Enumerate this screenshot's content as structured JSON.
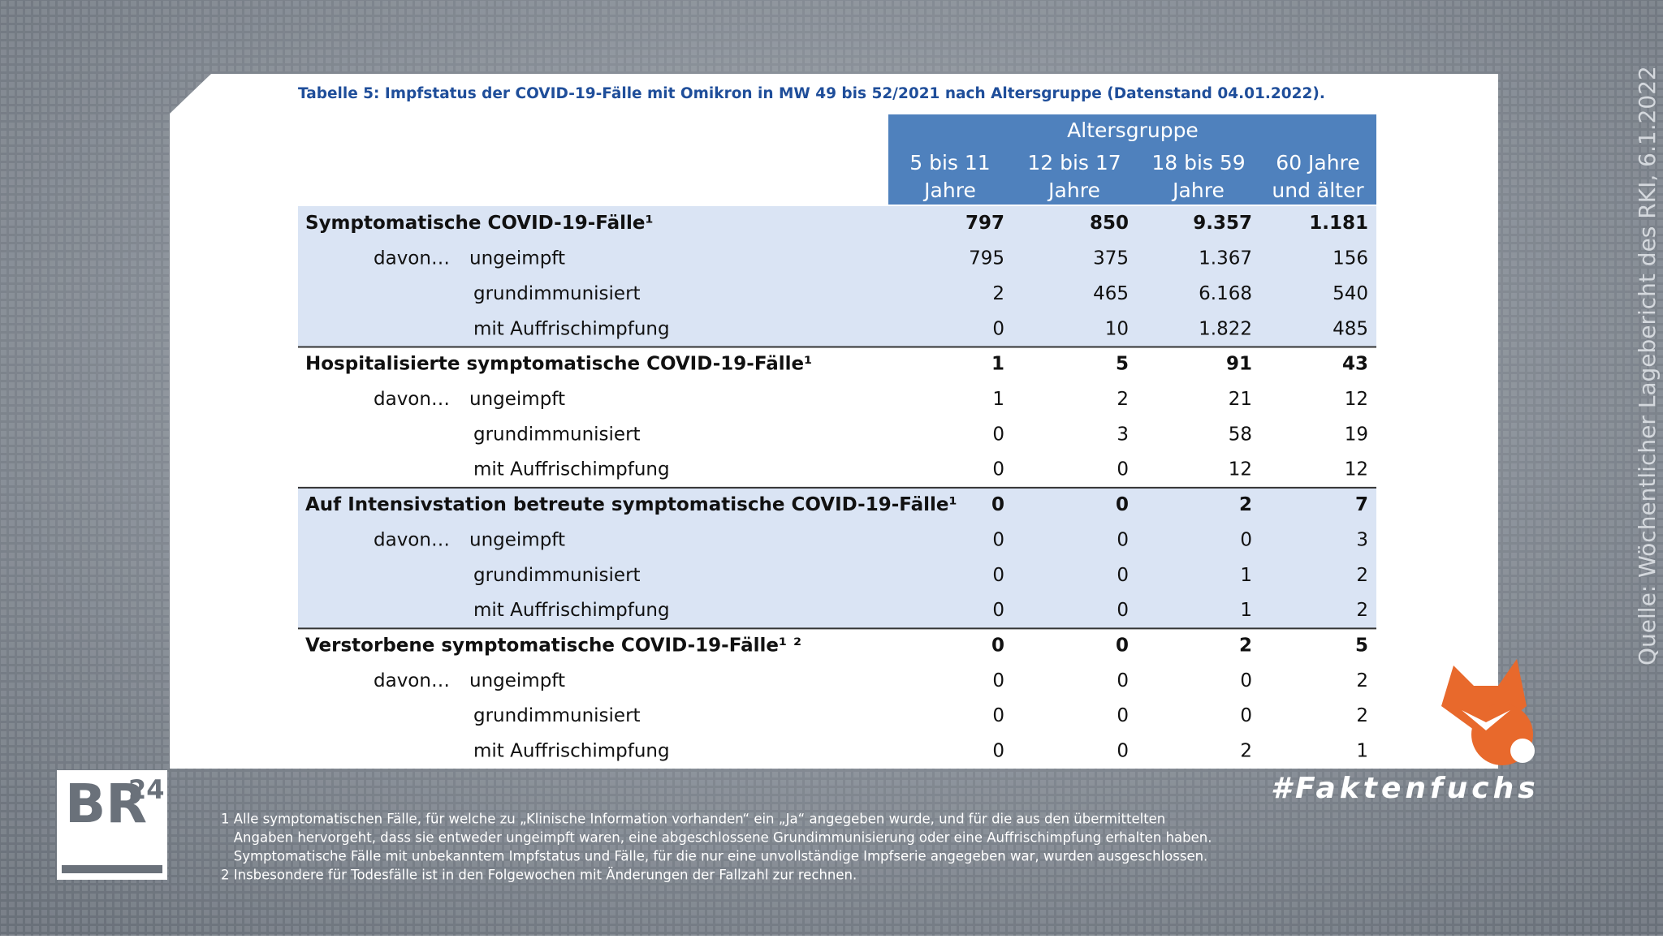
{
  "title": "Tabelle 5: Impfstatus der COVID-19-Fälle mit Omikron in MW 49 bis 52/2021 nach Altersgruppe (Datenstand 04.01.2022).",
  "header": {
    "group": "Altersgruppe",
    "columns": [
      [
        "5 bis 11",
        "Jahre"
      ],
      [
        "12 bis 17",
        "Jahre"
      ],
      [
        "18 bis 59",
        "Jahre"
      ],
      [
        "60 Jahre",
        "und älter"
      ]
    ]
  },
  "sections": [
    {
      "label": "Symptomatische COVID-19-Fälle¹",
      "values": [
        "797",
        "850",
        "9.357",
        "1.181"
      ],
      "rows": [
        {
          "prefix": "davon…",
          "label": "ungeimpft",
          "values": [
            "795",
            "375",
            "1.367",
            "156"
          ]
        },
        {
          "label": "grundimmunisiert",
          "values": [
            "2",
            "465",
            "6.168",
            "540"
          ]
        },
        {
          "label": "mit Auffrischimpfung",
          "values": [
            "0",
            "10",
            "1.822",
            "485"
          ]
        }
      ]
    },
    {
      "label": "Hospitalisierte symptomatische COVID-19-Fälle¹",
      "values": [
        "1",
        "5",
        "91",
        "43"
      ],
      "rows": [
        {
          "prefix": "davon…",
          "label": "ungeimpft",
          "values": [
            "1",
            "2",
            "21",
            "12"
          ]
        },
        {
          "label": "grundimmunisiert",
          "values": [
            "0",
            "3",
            "58",
            "19"
          ]
        },
        {
          "label": "mit Auffrischimpfung",
          "values": [
            "0",
            "0",
            "12",
            "12"
          ]
        }
      ]
    },
    {
      "label": "Auf Intensivstation betreute symptomatische COVID-19-Fälle¹",
      "values": [
        "0",
        "0",
        "2",
        "7"
      ],
      "rows": [
        {
          "prefix": "davon…",
          "label": "ungeimpft",
          "values": [
            "0",
            "0",
            "0",
            "3"
          ]
        },
        {
          "label": "grundimmunisiert",
          "values": [
            "0",
            "0",
            "1",
            "2"
          ]
        },
        {
          "label": "mit Auffrischimpfung",
          "values": [
            "0",
            "0",
            "1",
            "2"
          ]
        }
      ]
    },
    {
      "label": "Verstorbene symptomatische COVID-19-Fälle¹ ²",
      "values": [
        "0",
        "0",
        "2",
        "5"
      ],
      "rows": [
        {
          "prefix": "davon…",
          "label": "ungeimpft",
          "values": [
            "0",
            "0",
            "0",
            "2"
          ]
        },
        {
          "label": "grundimmunisiert",
          "values": [
            "0",
            "0",
            "0",
            "2"
          ]
        },
        {
          "label": "mit Auffrischimpfung",
          "values": [
            "0",
            "0",
            "2",
            "1"
          ]
        }
      ]
    }
  ],
  "footnotes": [
    "1 Alle symptomatischen Fälle, für welche zu „Klinische Information vorhanden“ ein „Ja“ angegeben wurde, und für die aus den übermittelten",
    "   Angaben hervorgeht, dass sie entweder ungeimpft waren, eine abgeschlossene Grundimmunisierung oder eine Auffrischimpfung erhalten haben.",
    "   Symptomatische Fälle mit unbekanntem Impfstatus und Fälle, für die nur eine unvollständige Impfserie angegeben war, wurden ausgeschlossen.",
    "2 Insbesondere für Todesfälle ist in den Folgewochen mit Änderungen der Fallzahl zur rechnen."
  ],
  "source": "Quelle:  Wöchentlicher Lagebericht des RKI, 6.1.2022",
  "logo": {
    "main": "BR",
    "sup": "24"
  },
  "brand": "#Faktenfuchs"
}
